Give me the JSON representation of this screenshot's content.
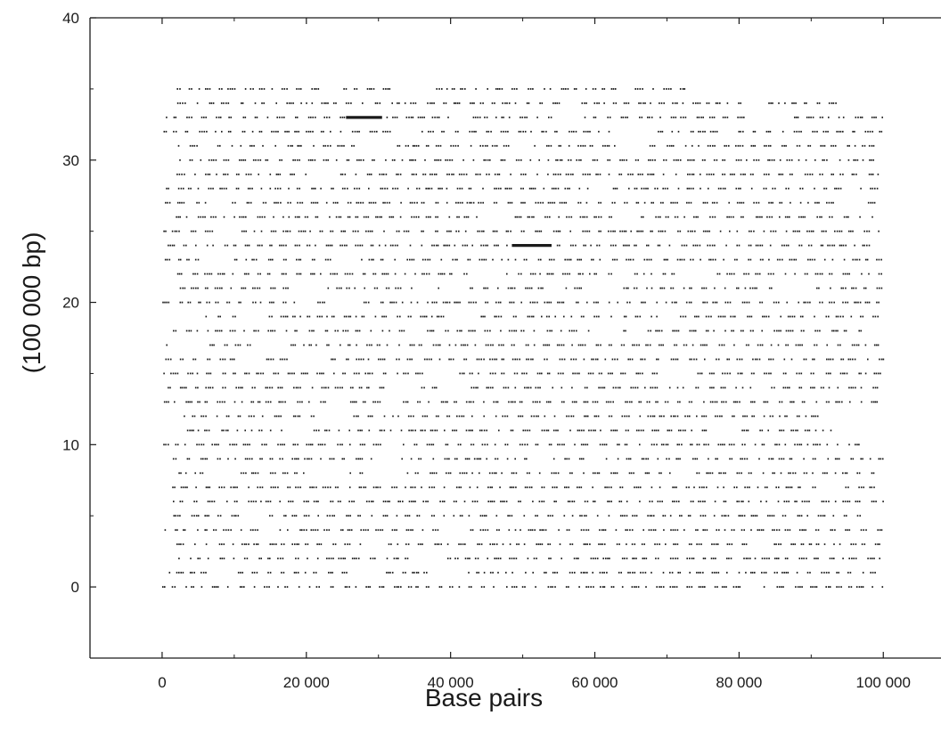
{
  "chart_data": {
    "type": "scatter",
    "title": "",
    "xlabel": "Base pairs",
    "ylabel": "(100 000 bp)",
    "xlim": [
      -10000,
      108000
    ],
    "ylim": [
      -5,
      40
    ],
    "x_ticks": [
      0,
      20000,
      40000,
      60000,
      80000,
      100000
    ],
    "x_tick_labels": [
      "0",
      "20 000",
      "40 000",
      "60 000",
      "80 000",
      "100 000"
    ],
    "y_ticks": [
      0,
      10,
      20,
      30,
      40
    ],
    "y_tick_labels": [
      "0",
      "10",
      "20",
      "30",
      "40"
    ],
    "grid": false,
    "legend": "none",
    "row_rows": [
      0,
      35
    ],
    "row_x_range": [
      0,
      100000
    ],
    "highlights": [
      {
        "row": 33,
        "x_start": 25500,
        "x_end": 30500
      },
      {
        "row": 24,
        "x_start": 48500,
        "x_end": 54000
      }
    ],
    "colors": {
      "points": "#1a1a1a",
      "axes": "#1a1a1a"
    }
  }
}
